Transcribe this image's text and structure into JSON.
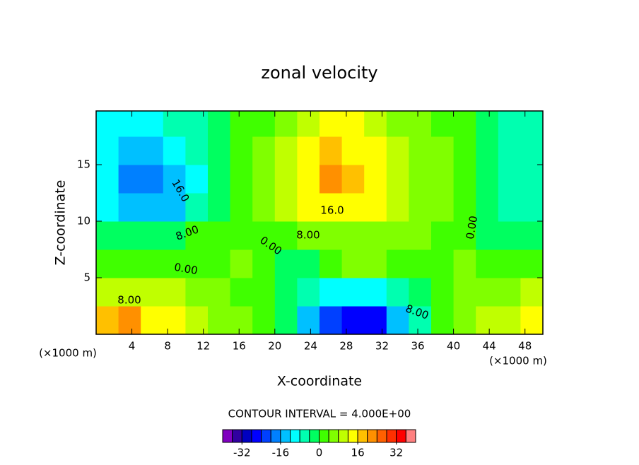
{
  "chart_data": {
    "type": "contour",
    "title": "zonal velocity",
    "x_label": "X-coordinate",
    "y_label": "Z-coordinate",
    "x_unit": "(×1000 m)",
    "y_unit": "(×1000 m)",
    "footnote": "CONTOUR INTERVAL = 4.000E+00",
    "x": [
      1.25,
      3.75,
      6.25,
      8.75,
      11.25,
      13.75,
      16.25,
      18.75,
      21.25,
      23.75,
      26.25,
      28.75,
      31.25,
      33.75,
      36.25,
      38.75,
      41.25,
      43.75,
      46.25,
      48.75
    ],
    "y": [
      1.25,
      3.75,
      6.25,
      8.75,
      11.25,
      13.75,
      16.25,
      18.75
    ],
    "z": [
      [
        18,
        20,
        14,
        12,
        8,
        6,
        4,
        2,
        -4,
        -16,
        -24,
        -26,
        -28,
        -16,
        -6,
        0,
        4,
        8,
        10,
        14
      ],
      [
        8,
        10,
        10,
        8,
        6,
        4,
        2,
        0,
        -2,
        -8,
        -10,
        -10,
        -10,
        -6,
        -2,
        2,
        4,
        6,
        6,
        8
      ],
      [
        2,
        2,
        2,
        0,
        0,
        2,
        4,
        2,
        -2,
        -2,
        2,
        4,
        4,
        2,
        0,
        2,
        4,
        2,
        0,
        0
      ],
      [
        -4,
        -4,
        -4,
        -2,
        0,
        2,
        2,
        0,
        2,
        4,
        6,
        6,
        6,
        6,
        4,
        2,
        0,
        -2,
        -4,
        -4
      ],
      [
        -12,
        -16,
        -16,
        -14,
        -8,
        -2,
        2,
        4,
        8,
        12,
        14,
        14,
        12,
        10,
        6,
        4,
        0,
        -2,
        -6,
        -6
      ],
      [
        -12,
        -20,
        -20,
        -16,
        -10,
        -4,
        0,
        4,
        8,
        14,
        20,
        16,
        14,
        10,
        6,
        4,
        0,
        -2,
        -6,
        -6
      ],
      [
        -12,
        -14,
        -14,
        -12,
        -8,
        -4,
        0,
        4,
        8,
        12,
        16,
        14,
        12,
        8,
        6,
        4,
        0,
        -2,
        -6,
        -6
      ],
      [
        -12,
        -12,
        -10,
        -8,
        -6,
        -2,
        0,
        2,
        6,
        10,
        14,
        12,
        8,
        6,
        4,
        2,
        0,
        -4,
        -6,
        -6
      ]
    ],
    "xlim": [
      0,
      50
    ],
    "ylim": [
      0,
      19.75
    ],
    "xticks": [
      4,
      8,
      12,
      16,
      20,
      24,
      28,
      32,
      36,
      40,
      44,
      48
    ],
    "yticks": [
      5,
      10,
      15
    ],
    "levels": [
      -40,
      -36,
      -32,
      -28,
      -24,
      -20,
      -16,
      -12,
      -8,
      -4,
      0,
      4,
      8,
      12,
      16,
      20,
      24,
      28,
      32,
      36,
      40
    ],
    "colors": [
      "#8000c0",
      "#3000a0",
      "#0000c0",
      "#0000ff",
      "#0040ff",
      "#0080ff",
      "#00c0ff",
      "#00ffff",
      "#00ffb0",
      "#00ff60",
      "#40ff00",
      "#80ff00",
      "#c0ff00",
      "#ffff00",
      "#ffc000",
      "#ff9000",
      "#ff6000",
      "#ff3000",
      "#ff0000",
      "#ff8080"
    ],
    "colorbar_ticks": [
      -32,
      -16,
      0,
      16,
      32
    ],
    "contour_labels": [
      "16.0",
      "16.0",
      "8.00",
      "8.00",
      "0.00",
      "0.00",
      "8.00",
      "8.00",
      "0.00"
    ]
  }
}
